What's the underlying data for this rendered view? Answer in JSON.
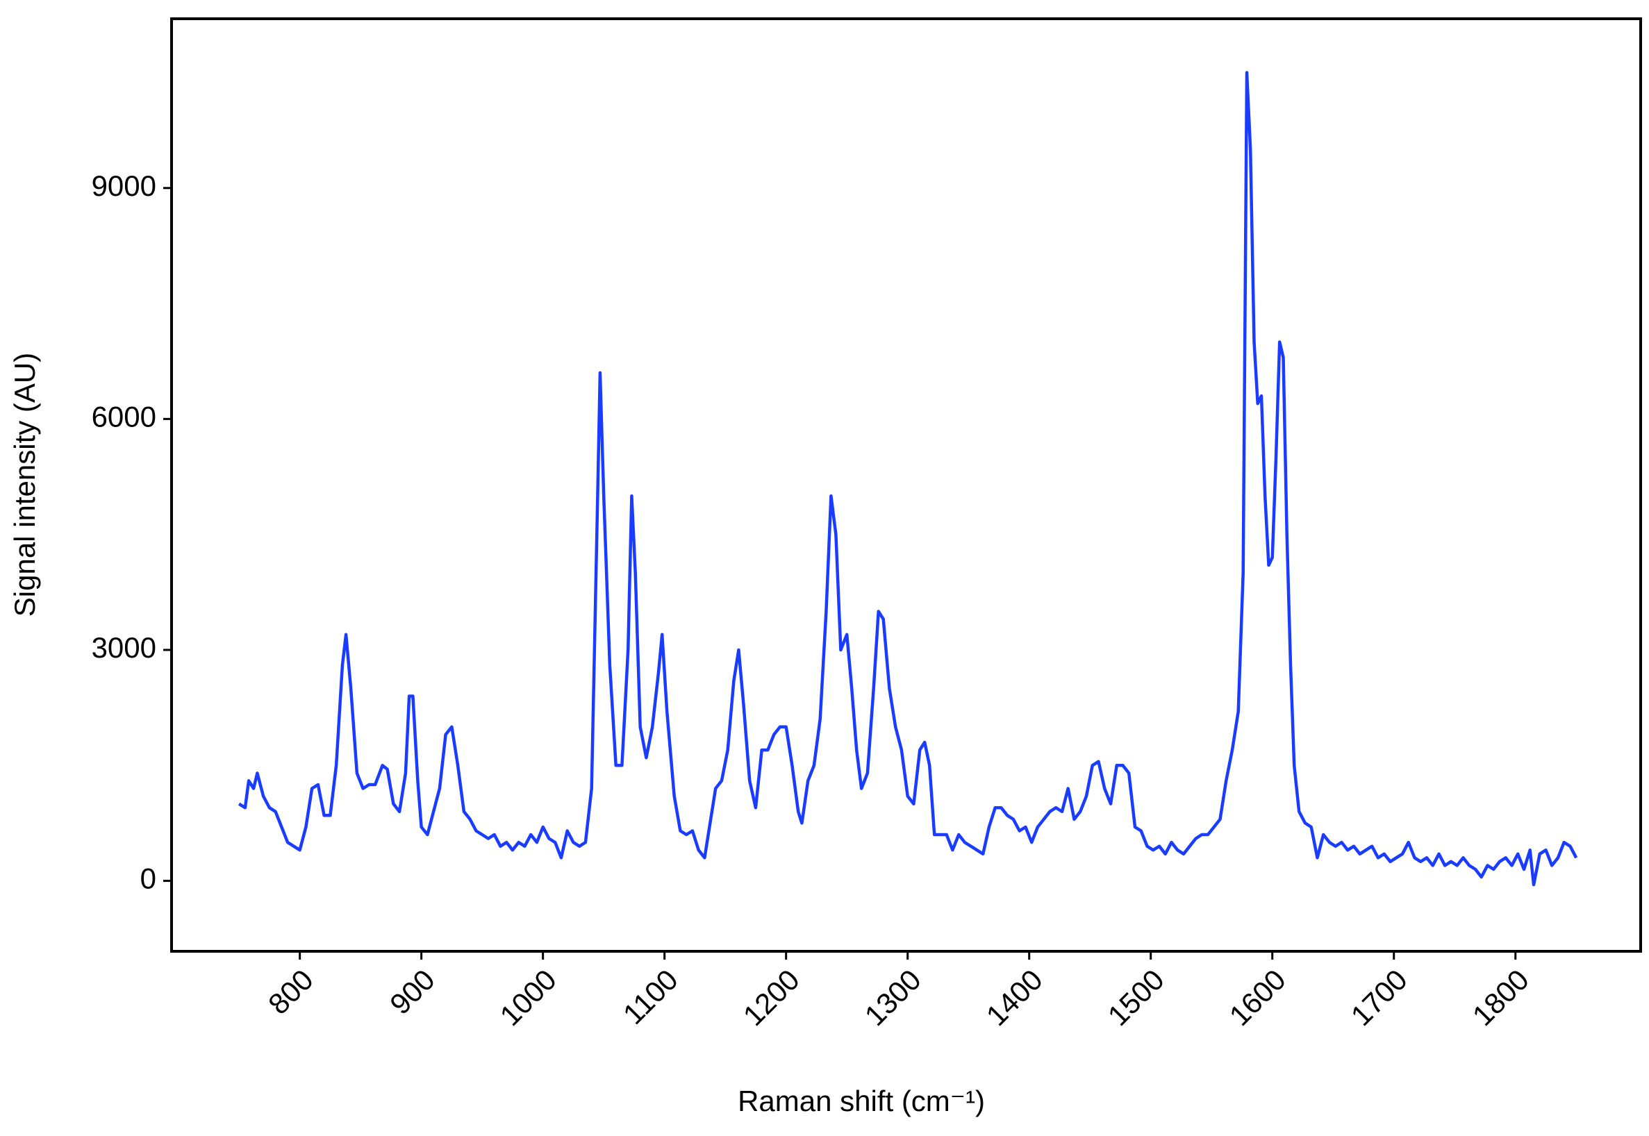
{
  "chart_data": {
    "type": "line",
    "x_label": "Raman shift (cm⁻¹)",
    "y_label": "Signal intensity (AU)",
    "xlim": [
      694.5,
      1903
    ],
    "ylim": [
      -915,
      11199
    ],
    "xticks": [
      800,
      900,
      1000,
      1100,
      1200,
      1300,
      1400,
      1500,
      1600,
      1700,
      1800
    ],
    "yticks": [
      0,
      3000,
      6000,
      9000
    ],
    "grid": false,
    "x": [
      750,
      755,
      758,
      762,
      765,
      770,
      775,
      780,
      785,
      790,
      795,
      800,
      805,
      810,
      815,
      820,
      825,
      830,
      835,
      838,
      842,
      847,
      852,
      857,
      862,
      868,
      872,
      877,
      882,
      887,
      890,
      893,
      897,
      900,
      905,
      910,
      915,
      920,
      925,
      930,
      935,
      940,
      945,
      950,
      955,
      960,
      965,
      970,
      975,
      980,
      985,
      990,
      995,
      1000,
      1005,
      1010,
      1015,
      1020,
      1025,
      1030,
      1035,
      1040,
      1045,
      1047,
      1050,
      1055,
      1060,
      1065,
      1070,
      1073,
      1076,
      1080,
      1085,
      1090,
      1095,
      1098,
      1102,
      1108,
      1113,
      1118,
      1123,
      1128,
      1133,
      1137,
      1142,
      1147,
      1152,
      1157,
      1161,
      1165,
      1170,
      1175,
      1180,
      1185,
      1190,
      1195,
      1200,
      1205,
      1210,
      1213,
      1218,
      1223,
      1228,
      1233,
      1237,
      1241,
      1245,
      1250,
      1254,
      1258,
      1262,
      1267,
      1272,
      1276,
      1280,
      1285,
      1290,
      1295,
      1300,
      1305,
      1310,
      1314,
      1318,
      1322,
      1327,
      1332,
      1337,
      1342,
      1347,
      1352,
      1357,
      1362,
      1367,
      1372,
      1377,
      1382,
      1387,
      1392,
      1397,
      1402,
      1407,
      1412,
      1417,
      1422,
      1427,
      1432,
      1437,
      1442,
      1447,
      1452,
      1457,
      1462,
      1467,
      1472,
      1477,
      1482,
      1487,
      1492,
      1497,
      1502,
      1507,
      1512,
      1517,
      1522,
      1527,
      1532,
      1537,
      1542,
      1547,
      1552,
      1557,
      1562,
      1567,
      1572,
      1576,
      1579,
      1582,
      1585,
      1588,
      1591,
      1594,
      1597,
      1600,
      1603,
      1606,
      1609,
      1612,
      1615,
      1618,
      1622,
      1627,
      1632,
      1637,
      1642,
      1647,
      1652,
      1657,
      1662,
      1667,
      1672,
      1677,
      1682,
      1687,
      1692,
      1697,
      1702,
      1707,
      1712,
      1717,
      1722,
      1727,
      1732,
      1737,
      1742,
      1747,
      1752,
      1757,
      1762,
      1767,
      1772,
      1777,
      1782,
      1787,
      1792,
      1797,
      1802,
      1807,
      1812,
      1815,
      1820,
      1825,
      1830,
      1835,
      1840,
      1845,
      1850
    ],
    "series": [
      {
        "color": "#1a3cff",
        "values": [
          1000,
          950,
          1300,
          1200,
          1400,
          1100,
          950,
          900,
          700,
          500,
          450,
          400,
          700,
          1200,
          1250,
          850,
          850,
          1500,
          2800,
          3200,
          2500,
          1400,
          1200,
          1250,
          1250,
          1500,
          1450,
          1000,
          900,
          1400,
          2400,
          2400,
          1300,
          700,
          600,
          900,
          1200,
          1900,
          2000,
          1500,
          900,
          800,
          650,
          600,
          550,
          600,
          450,
          500,
          400,
          500,
          450,
          600,
          500,
          700,
          550,
          500,
          300,
          650,
          500,
          450,
          500,
          1200,
          5000,
          6600,
          5000,
          2800,
          1500,
          1500,
          3000,
          5000,
          4000,
          2000,
          1600,
          2000,
          2700,
          3200,
          2200,
          1100,
          650,
          600,
          650,
          400,
          300,
          700,
          1200,
          1300,
          1700,
          2600,
          3000,
          2300,
          1300,
          950,
          1700,
          1700,
          1900,
          2000,
          2000,
          1500,
          900,
          750,
          1300,
          1500,
          2100,
          3500,
          5000,
          4500,
          3000,
          3200,
          2500,
          1700,
          1200,
          1400,
          2500,
          3500,
          3400,
          2500,
          2000,
          1700,
          1100,
          1000,
          1700,
          1800,
          1500,
          600,
          600,
          600,
          400,
          600,
          500,
          450,
          400,
          350,
          700,
          950,
          950,
          850,
          800,
          650,
          700,
          500,
          700,
          800,
          900,
          950,
          900,
          1200,
          800,
          900,
          1100,
          1500,
          1550,
          1200,
          1000,
          1500,
          1500,
          1400,
          700,
          650,
          450,
          400,
          450,
          350,
          500,
          400,
          350,
          450,
          550,
          600,
          600,
          700,
          800,
          1300,
          1700,
          2200,
          4000,
          10500,
          9500,
          7000,
          6200,
          6300,
          5000,
          4100,
          4200,
          5500,
          7000,
          6800,
          4500,
          2800,
          1500,
          900,
          750,
          700,
          300,
          600,
          500,
          450,
          500,
          400,
          450,
          350,
          400,
          450,
          300,
          350,
          250,
          300,
          350,
          500,
          300,
          250,
          300,
          200,
          350,
          200,
          250,
          200,
          300,
          200,
          150,
          50,
          200,
          150,
          250,
          300,
          200,
          350,
          150,
          400,
          -50,
          350,
          400,
          200,
          300,
          500,
          450,
          300
        ]
      }
    ]
  }
}
